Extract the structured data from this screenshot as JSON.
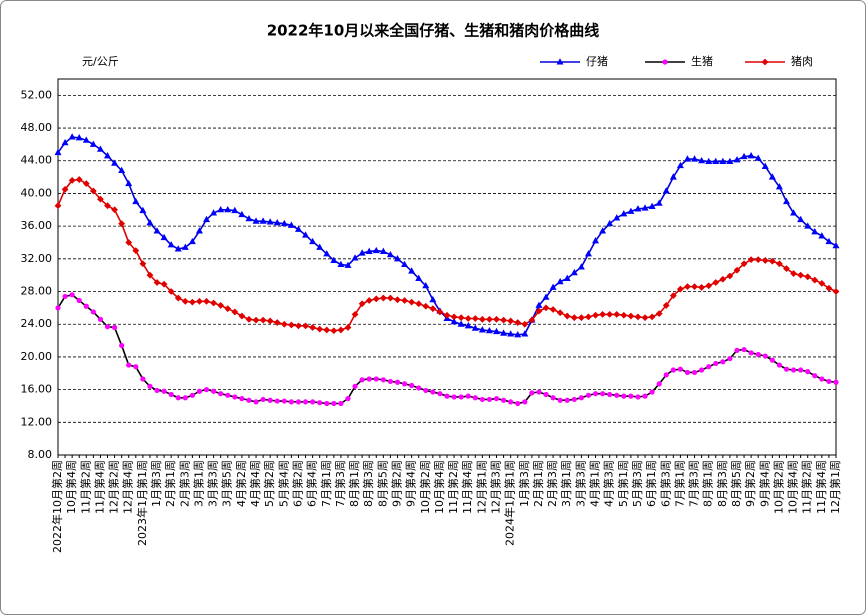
{
  "chart_data": {
    "type": "line",
    "title": "2022年10月以来全国仔猪、生猪和猪肉价格曲线",
    "y_label": "元/公斤",
    "grid": true,
    "legend": "top-right",
    "ylim": [
      8,
      54
    ],
    "yticks": [
      {
        "value": 8,
        "label": "8.00"
      },
      {
        "value": 12,
        "label": "12.00"
      },
      {
        "value": 16,
        "label": "16.00"
      },
      {
        "value": 20,
        "label": "20.00"
      },
      {
        "value": 24,
        "label": "24.00"
      },
      {
        "value": 28,
        "label": "28.00"
      },
      {
        "value": 32,
        "label": "32.00"
      },
      {
        "value": 36,
        "label": "36.00"
      },
      {
        "value": 40,
        "label": "40.00"
      },
      {
        "value": 44,
        "label": "44.00"
      },
      {
        "value": 48,
        "label": "48.00"
      },
      {
        "value": 52,
        "label": "52.00"
      }
    ],
    "categories": [
      "2022年10月第2周",
      null,
      "10月第4周",
      null,
      "11月第2周",
      null,
      "11月第4周",
      null,
      "12月第2周",
      null,
      "12月第4周",
      null,
      "2023年1月第1周",
      null,
      "1月第3周",
      null,
      "2月第1周",
      null,
      "2月第3周",
      null,
      "3月第1周",
      null,
      "3月第3周",
      null,
      "3月第5周",
      null,
      "4月第2周",
      null,
      "4月第4周",
      null,
      "5月第2周",
      null,
      "5月第4周",
      null,
      "6月第2周",
      null,
      "6月第4周",
      null,
      "7月第1周",
      null,
      "7月第3周",
      null,
      "8月第1周",
      null,
      "8月第3周",
      null,
      "8月第5周",
      null,
      "9月第2周",
      null,
      "9月第4周",
      null,
      "10月第2周",
      null,
      "10月第4周",
      null,
      "11月第2周",
      null,
      "11月第4周",
      null,
      "12月第1周",
      null,
      "12月第3周",
      null,
      "2024年1月第1周",
      null,
      "1月第3周",
      null,
      "2月第1周",
      null,
      "2月第3周",
      null,
      "3月第1周",
      null,
      "3月第3周",
      null,
      "4月第1周",
      null,
      "4月第3周",
      null,
      "5月第1周",
      null,
      "5月第3周",
      null,
      "6月第1周",
      null,
      "6月第3周",
      null,
      "7月第1周",
      null,
      "7月第3周",
      null,
      "8月第1周",
      null,
      "8月第3周",
      null,
      "8月第5周",
      null,
      "9月第2周",
      null,
      "9月第4周",
      null,
      "10月第2周",
      null,
      "10月第4周",
      null,
      "11月第2周",
      null,
      "11月第4周",
      null,
      "12月第1周"
    ],
    "series": [
      {
        "name": "仔猪",
        "color": "#0000dd",
        "marker": "triangle",
        "marker_color": "#0000ff",
        "values": [
          45.0,
          46.2,
          46.9,
          46.8,
          46.5,
          46.0,
          45.4,
          44.6,
          43.7,
          42.8,
          41.2,
          39.0,
          37.9,
          36.4,
          35.4,
          34.6,
          33.7,
          33.2,
          33.4,
          34.1,
          35.4,
          36.8,
          37.6,
          38.0,
          38.0,
          37.9,
          37.4,
          36.9,
          36.6,
          36.6,
          36.5,
          36.4,
          36.3,
          36.1,
          35.6,
          34.9,
          34.1,
          33.4,
          32.6,
          31.8,
          31.3,
          31.2,
          32.1,
          32.7,
          32.9,
          33.0,
          32.9,
          32.5,
          32.0,
          31.3,
          30.5,
          29.6,
          28.7,
          27.0,
          25.6,
          24.7,
          24.3,
          24.0,
          23.8,
          23.5,
          23.3,
          23.2,
          23.1,
          22.9,
          22.8,
          22.7,
          22.8,
          24.5,
          26.3,
          27.3,
          28.5,
          29.2,
          29.6,
          30.3,
          31.0,
          32.6,
          34.2,
          35.4,
          36.3,
          37.0,
          37.5,
          37.8,
          38.1,
          38.2,
          38.4,
          38.8,
          40.3,
          42.0,
          43.4,
          44.2,
          44.2,
          44.0,
          43.9,
          43.9,
          43.9,
          43.9,
          44.1,
          44.5,
          44.6,
          44.3,
          43.3,
          42.0,
          40.8,
          39.0,
          37.6,
          36.8,
          36.0,
          35.3,
          34.8,
          34.1,
          33.6
        ]
      },
      {
        "name": "生猪",
        "color": "#000000",
        "marker": "circle",
        "marker_color": "#ff00ff",
        "values": [
          26.0,
          27.4,
          27.6,
          26.9,
          26.2,
          25.5,
          24.6,
          23.7,
          23.6,
          21.4,
          19.0,
          18.8,
          17.3,
          16.4,
          15.9,
          15.8,
          15.4,
          15.0,
          15.0,
          15.3,
          15.8,
          16.0,
          15.8,
          15.5,
          15.3,
          15.1,
          14.9,
          14.7,
          14.5,
          14.8,
          14.7,
          14.6,
          14.6,
          14.5,
          14.5,
          14.5,
          14.5,
          14.4,
          14.3,
          14.3,
          14.3,
          14.9,
          16.4,
          17.2,
          17.3,
          17.3,
          17.2,
          17.0,
          16.9,
          16.7,
          16.5,
          16.2,
          15.9,
          15.7,
          15.5,
          15.2,
          15.1,
          15.1,
          15.2,
          15.0,
          14.8,
          14.8,
          14.9,
          14.7,
          14.5,
          14.3,
          14.5,
          15.6,
          15.7,
          15.4,
          15.0,
          14.7,
          14.7,
          14.8,
          15.0,
          15.3,
          15.5,
          15.5,
          15.4,
          15.3,
          15.2,
          15.2,
          15.1,
          15.2,
          15.7,
          16.7,
          17.8,
          18.4,
          18.5,
          18.1,
          18.1,
          18.4,
          18.8,
          19.2,
          19.4,
          19.8,
          20.8,
          20.9,
          20.5,
          20.3,
          20.1,
          19.6,
          19.0,
          18.5,
          18.4,
          18.4,
          18.2,
          17.7,
          17.3,
          17.0,
          16.9
        ]
      },
      {
        "name": "猪肉",
        "color": "#e00000",
        "marker": "diamond",
        "marker_color": "#e00000",
        "values": [
          38.5,
          40.5,
          41.6,
          41.7,
          41.2,
          40.3,
          39.3,
          38.5,
          38.0,
          36.3,
          34.0,
          33.0,
          31.4,
          30.0,
          29.1,
          28.9,
          28.0,
          27.2,
          26.8,
          26.7,
          26.8,
          26.8,
          26.6,
          26.3,
          25.9,
          25.5,
          25.0,
          24.6,
          24.5,
          24.5,
          24.4,
          24.2,
          24.0,
          23.9,
          23.8,
          23.8,
          23.6,
          23.4,
          23.3,
          23.2,
          23.3,
          23.6,
          25.2,
          26.5,
          26.9,
          27.1,
          27.2,
          27.2,
          27.0,
          26.9,
          26.7,
          26.5,
          26.2,
          25.9,
          25.5,
          25.1,
          24.9,
          24.8,
          24.7,
          24.7,
          24.6,
          24.6,
          24.6,
          24.5,
          24.4,
          24.2,
          24.0,
          24.5,
          25.6,
          26.0,
          25.8,
          25.4,
          25.0,
          24.8,
          24.8,
          24.9,
          25.1,
          25.2,
          25.2,
          25.2,
          25.1,
          25.0,
          24.9,
          24.8,
          24.9,
          25.3,
          26.3,
          27.5,
          28.3,
          28.6,
          28.6,
          28.5,
          28.7,
          29.1,
          29.5,
          29.9,
          30.6,
          31.4,
          31.9,
          31.9,
          31.8,
          31.7,
          31.4,
          30.8,
          30.2,
          30.0,
          29.8,
          29.4,
          29.0,
          28.4,
          28.0
        ]
      }
    ]
  }
}
